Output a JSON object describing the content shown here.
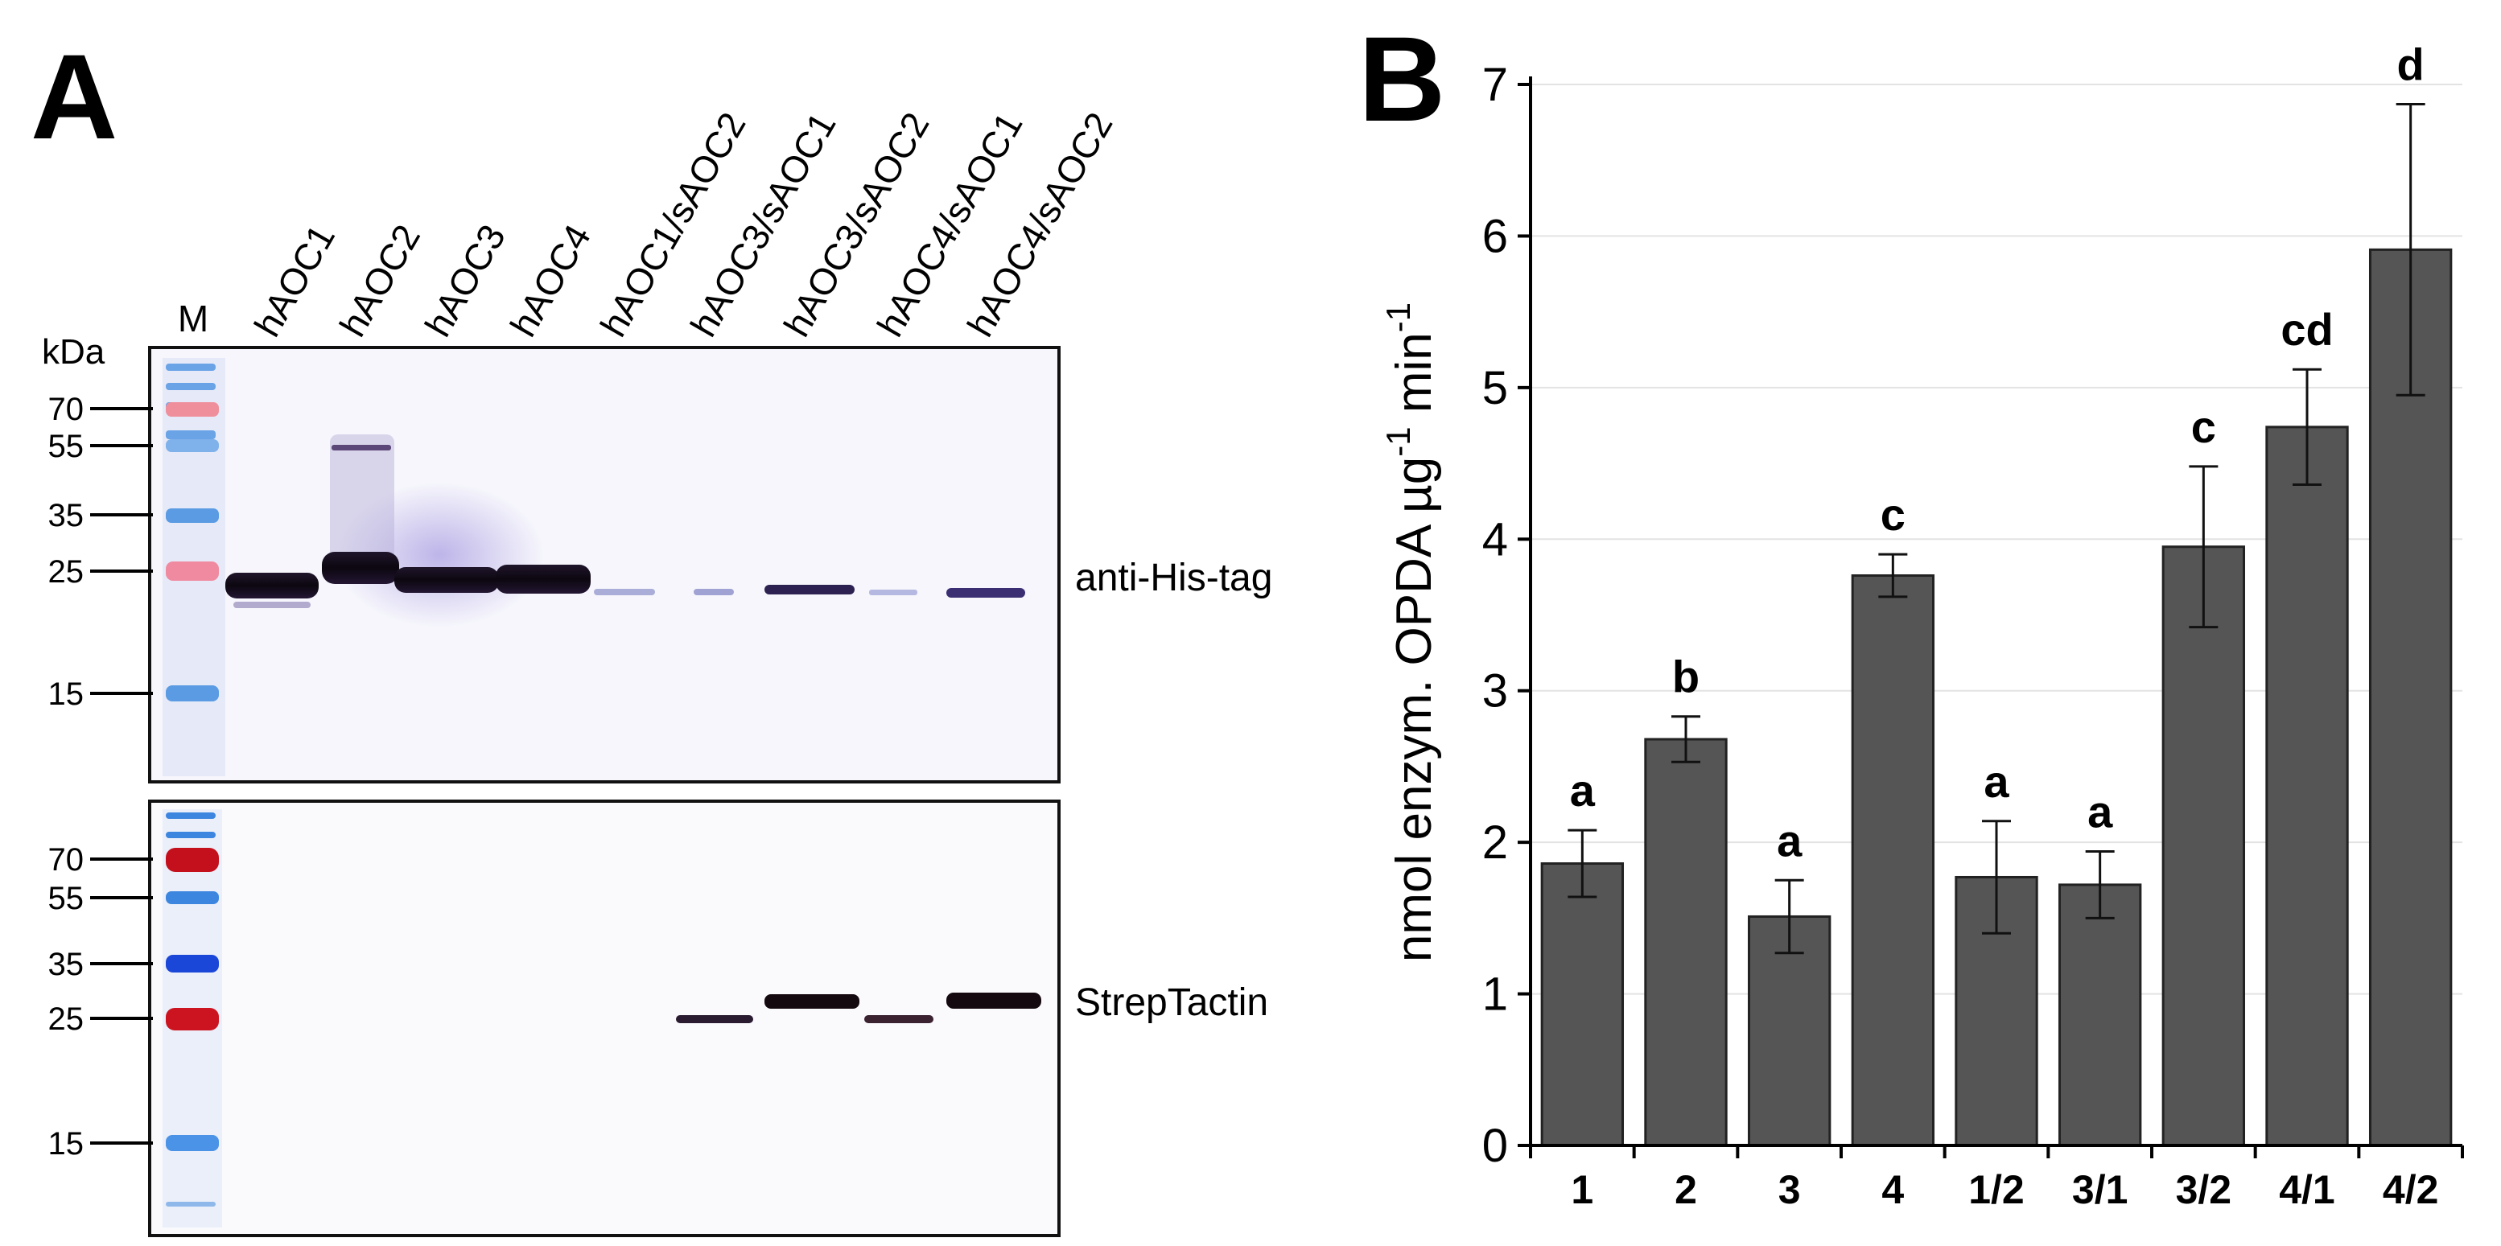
{
  "panel_a": {
    "letter": "A",
    "marker_label": "M",
    "unit_label": "kDa",
    "lane_labels": [
      "hAOC1",
      "hAOC2",
      "hAOC3",
      "hAOC4",
      "hAOC1/sAOC2",
      "hAOC3/sAOC1",
      "hAOC3/sAOC2",
      "hAOC4/sAOC1",
      "hAOC4/sAOC2"
    ],
    "top_blot": {
      "label": "anti-His-tag",
      "markers": [
        "70",
        "55",
        "35",
        "25",
        "15"
      ],
      "marker_colors": [
        "#ef8f9c",
        "#7fb1ea",
        "#5a9be3",
        "#f08aa0",
        "#5a9be3"
      ]
    },
    "bottom_blot": {
      "label": "StrepTactin",
      "markers": [
        "70",
        "55",
        "35",
        "25",
        "15"
      ],
      "marker_colors": [
        "#c4101c",
        "#3d86e0",
        "#1b47d8",
        "#cc1420",
        "#4a93e6"
      ]
    }
  },
  "panel_b": {
    "letter": "B"
  },
  "chart_data": {
    "type": "bar",
    "categories": [
      "1",
      "2",
      "3",
      "4",
      "1/2",
      "3/1",
      "3/2",
      "4/1",
      "4/2"
    ],
    "values": [
      1.86,
      2.68,
      1.51,
      3.76,
      1.77,
      1.72,
      3.95,
      4.74,
      5.91
    ],
    "errors": [
      0.22,
      0.15,
      0.24,
      0.14,
      0.37,
      0.22,
      0.53,
      0.38,
      0.96
    ],
    "significance_letters": [
      "a",
      "b",
      "a",
      "c",
      "a",
      "a",
      "c",
      "cd",
      "d"
    ],
    "ylabel": "nmol enzym. OPDA µg",
    "ylabel_sup1": "-1",
    "ylabel_mid": " min",
    "ylabel_sup2": "-1",
    "xlabel": "",
    "ylim": [
      0,
      7
    ],
    "yticks": [
      "0",
      "1",
      "2",
      "3",
      "4",
      "5",
      "6",
      "7"
    ],
    "bar_color": "#555555",
    "grid": true
  }
}
